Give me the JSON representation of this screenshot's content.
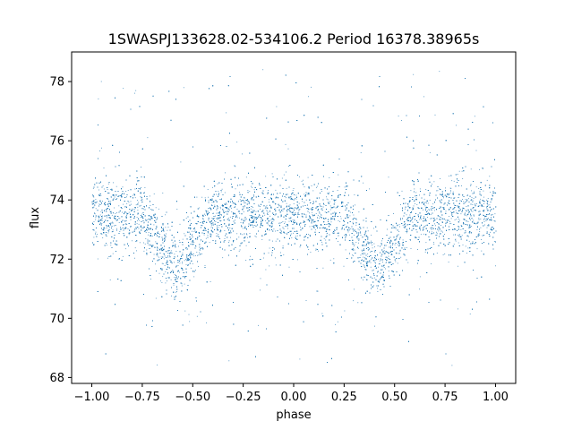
{
  "chart_data": {
    "type": "scatter",
    "title": "1SWASPJ133628.02-534106.2 Period 16378.38965s",
    "xlabel": "phase",
    "ylabel": "flux",
    "xlim": [
      -1.1,
      1.1
    ],
    "ylim": [
      67.8,
      79.0
    ],
    "xticks": [
      -1.0,
      -0.75,
      -0.5,
      -0.25,
      0.0,
      0.25,
      0.5,
      0.75,
      1.0
    ],
    "xtick_labels": [
      "−1.00",
      "−0.75",
      "−0.50",
      "−0.25",
      "0.00",
      "0.25",
      "0.50",
      "0.75",
      "1.00"
    ],
    "yticks": [
      68,
      70,
      72,
      74,
      76,
      78
    ],
    "ytick_labels": [
      "68",
      "70",
      "72",
      "74",
      "76",
      "78"
    ],
    "grid": false,
    "marker_color": "#1f77b4",
    "series": [
      {
        "phase_range": [
          -1.0,
          1.0
        ],
        "baseline_flux": 73.5,
        "scatter_sigma": 0.55,
        "dip": {
          "centers": [
            -0.58,
            0.42
          ],
          "depth": 1.9,
          "half_width": 0.17
        },
        "outlier_range": [
          68.4,
          78.5
        ]
      }
    ]
  }
}
